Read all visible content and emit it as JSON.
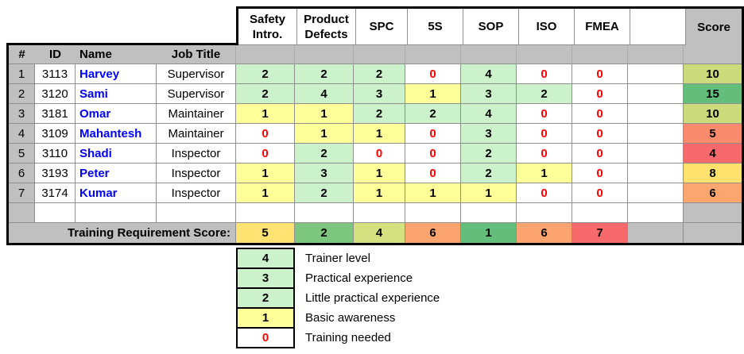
{
  "table": {
    "corner_headers": {
      "num": "#",
      "id": "ID",
      "name": "Name",
      "job": "Job Title"
    },
    "skill_columns": [
      "Safety Intro.",
      "Product Defects",
      "SPC",
      "5S",
      "SOP",
      "ISO",
      "FMEA"
    ],
    "blank_column": "",
    "score_header": "Score",
    "employees": [
      {
        "row": "1",
        "id": "3113",
        "name": "Harvey",
        "job": "Supervisor",
        "levels": [
          2,
          2,
          2,
          0,
          4,
          0,
          0
        ],
        "score": "10",
        "score_color": "#CBDB7B"
      },
      {
        "row": "2",
        "id": "3120",
        "name": "Sami",
        "job": "Supervisor",
        "levels": [
          2,
          4,
          3,
          1,
          3,
          2,
          0
        ],
        "score": "15",
        "score_color": "#63BE7B"
      },
      {
        "row": "3",
        "id": "3181",
        "name": "Omar",
        "job": "Maintainer",
        "levels": [
          1,
          1,
          2,
          2,
          4,
          0,
          0
        ],
        "score": "10",
        "score_color": "#CBDB7B"
      },
      {
        "row": "4",
        "id": "3109",
        "name": "Mahantesh",
        "job": "Maintainer",
        "levels": [
          0,
          1,
          1,
          0,
          3,
          0,
          0
        ],
        "score": "5",
        "score_color": "#F98A6C"
      },
      {
        "row": "5",
        "id": "3110",
        "name": "Shadi",
        "job": "Inspector",
        "levels": [
          0,
          2,
          0,
          0,
          2,
          0,
          0
        ],
        "score": "4",
        "score_color": "#F8696B"
      },
      {
        "row": "6",
        "id": "3193",
        "name": "Peter",
        "job": "Inspector",
        "levels": [
          1,
          3,
          1,
          0,
          2,
          1,
          0
        ],
        "score": "8",
        "score_color": "#FFE26E"
      },
      {
        "row": "7",
        "id": "3174",
        "name": "Kumar",
        "job": "Inspector",
        "levels": [
          1,
          2,
          1,
          1,
          1,
          0,
          0
        ],
        "score": "6",
        "score_color": "#FBA56F"
      }
    ],
    "totals": {
      "label": "Training Requirement Score:",
      "values": [
        {
          "value": "5",
          "color": "#FFE272"
        },
        {
          "value": "2",
          "color": "#7CC67D"
        },
        {
          "value": "4",
          "color": "#D5E081"
        },
        {
          "value": "6",
          "color": "#FBA46F"
        },
        {
          "value": "1",
          "color": "#63BE7B"
        },
        {
          "value": "6",
          "color": "#FBA46F"
        },
        {
          "value": "7",
          "color": "#F8696B"
        }
      ]
    }
  },
  "level_styles": {
    "0": {
      "bg": "#FFFFFF",
      "fg": "#FF0000"
    },
    "1": {
      "bg": "#FFFF99",
      "fg": "#000000"
    },
    "2": {
      "bg": "#CCF2CC",
      "fg": "#000000"
    },
    "3": {
      "bg": "#CCF2CC",
      "fg": "#000000"
    },
    "4": {
      "bg": "#CCF2CC",
      "fg": "#000000"
    }
  },
  "legend": {
    "items": [
      {
        "value": "4",
        "label": "Trainer level",
        "bg": "#CCF2CC",
        "fg": "#000000"
      },
      {
        "value": "3",
        "label": "Practical experience",
        "bg": "#CCF2CC",
        "fg": "#000000"
      },
      {
        "value": "2",
        "label": "Little practical experience",
        "bg": "#CCF2CC",
        "fg": "#000000"
      },
      {
        "value": "1",
        "label": "Basic awareness",
        "bg": "#FFFF99",
        "fg": "#000000"
      },
      {
        "value": "0",
        "label": "Training needed",
        "bg": "#FFFFFF",
        "fg": "#FF0000"
      }
    ]
  },
  "colors": {
    "header_gray": "#C0C0C0",
    "grid_line": "#8E8E8E",
    "thick_border": "#000000",
    "name_blue": "#0000FF",
    "zero_red": "#FF0000"
  }
}
